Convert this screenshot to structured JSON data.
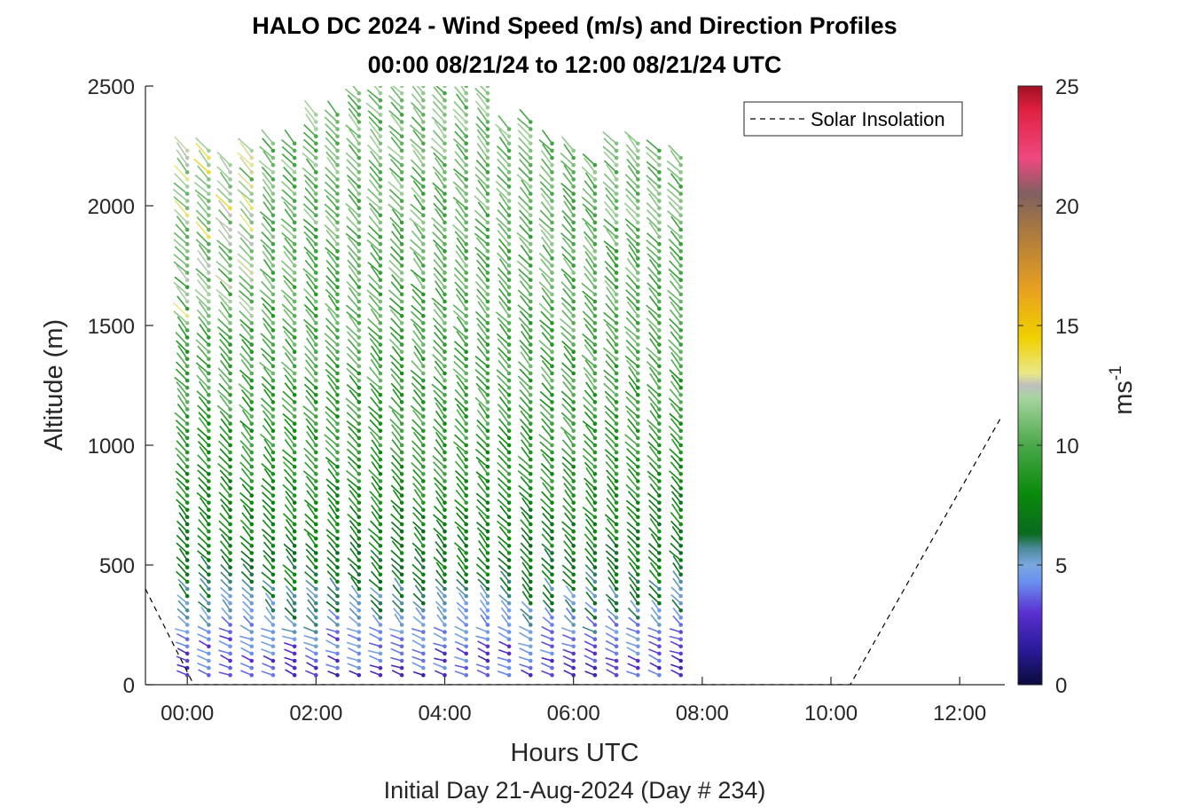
{
  "chart_data": {
    "type": "scatter",
    "title_line1": "HALO DC 2024 - Wind Speed (m/s) and Direction Profiles",
    "title_line2": "00:00 08/21/24 to 12:00 08/21/24  UTC",
    "xlabel": "Hours UTC",
    "xlabel_sub": "Initial Day 21-Aug-2024 (Day # 234)",
    "ylabel": "Altitude (m)",
    "xlim": [
      -0.65,
      12.7
    ],
    "ylim": [
      0,
      2500
    ],
    "x_ticks": [
      {
        "value": 0,
        "label": "00:00"
      },
      {
        "value": 2,
        "label": "02:00"
      },
      {
        "value": 4,
        "label": "04:00"
      },
      {
        "value": 6,
        "label": "06:00"
      },
      {
        "value": 8,
        "label": "08:00"
      },
      {
        "value": 10,
        "label": "10:00"
      },
      {
        "value": 12,
        "label": "12:00"
      }
    ],
    "y_ticks": [
      {
        "value": 0,
        "label": "0"
      },
      {
        "value": 500,
        "label": "500"
      },
      {
        "value": 1000,
        "label": "1000"
      },
      {
        "value": 1500,
        "label": "1500"
      },
      {
        "value": 2000,
        "label": "2000"
      },
      {
        "value": 2500,
        "label": "2500"
      }
    ],
    "colorbar": {
      "label": "ms",
      "label_exponent": "-1",
      "range": [
        0,
        25
      ],
      "ticks": [
        {
          "value": 0,
          "label": "0"
        },
        {
          "value": 5,
          "label": "5"
        },
        {
          "value": 10,
          "label": "10"
        },
        {
          "value": 15,
          "label": "15"
        },
        {
          "value": 20,
          "label": "20"
        },
        {
          "value": 25,
          "label": "25"
        }
      ],
      "stops": [
        {
          "v": 0,
          "c": "#0a0a3c"
        },
        {
          "v": 1.5,
          "c": "#2a1b9a"
        },
        {
          "v": 3,
          "c": "#5a2fd0"
        },
        {
          "v": 4.3,
          "c": "#6a90f0"
        },
        {
          "v": 5,
          "c": "#7aa7e0"
        },
        {
          "v": 5.7,
          "c": "#4a8a9a"
        },
        {
          "v": 6.3,
          "c": "#0a6a20"
        },
        {
          "v": 8,
          "c": "#0a8a0a"
        },
        {
          "v": 10,
          "c": "#4aa84a"
        },
        {
          "v": 12,
          "c": "#a8d4a0"
        },
        {
          "v": 12.5,
          "c": "#bebebe"
        },
        {
          "v": 13,
          "c": "#e8e888"
        },
        {
          "v": 14.5,
          "c": "#f0d000"
        },
        {
          "v": 16.5,
          "c": "#e8a020"
        },
        {
          "v": 19,
          "c": "#a87840"
        },
        {
          "v": 20.5,
          "c": "#806060"
        },
        {
          "v": 22,
          "c": "#f04880"
        },
        {
          "v": 24,
          "c": "#e02040"
        },
        {
          "v": 25,
          "c": "#a01020"
        }
      ]
    },
    "legend": {
      "entry": "Solar Insolation",
      "position": "top-right"
    },
    "solar_insolation": [
      {
        "x": -0.65,
        "y": 400
      },
      {
        "x": 0.1,
        "y": 0
      },
      {
        "x": 10.3,
        "y": 0
      },
      {
        "x": 12.65,
        "y": 1120
      }
    ],
    "profiles": {
      "times": [
        0,
        0.333,
        0.667,
        1,
        1.333,
        1.667,
        2,
        2.333,
        2.667,
        3,
        3.333,
        3.667,
        4,
        4.333,
        4.667,
        5,
        5.333,
        5.667,
        6,
        6.333,
        6.667,
        7,
        7.333,
        7.667
      ],
      "top_altitudes": [
        2250,
        2240,
        2180,
        2230,
        2270,
        2260,
        2380,
        2380,
        2480,
        2500,
        2500,
        2500,
        2500,
        2500,
        2500,
        2340,
        2350,
        2260,
        2250,
        2180,
        2270,
        2270,
        2250,
        2220
      ],
      "altitude_step_m": 30,
      "speed_profile_ms": [
        {
          "alt": 0,
          "speed": 3
        },
        {
          "alt": 100,
          "speed": 3.5
        },
        {
          "alt": 250,
          "speed": 4.8
        },
        {
          "alt": 450,
          "speed": 7
        },
        {
          "alt": 1000,
          "speed": 9
        },
        {
          "alt": 1500,
          "speed": 10
        },
        {
          "alt": 2500,
          "speed": 11
        }
      ],
      "direction_note": "barbs point toward the east-southeast with heads at the observation point"
    }
  }
}
